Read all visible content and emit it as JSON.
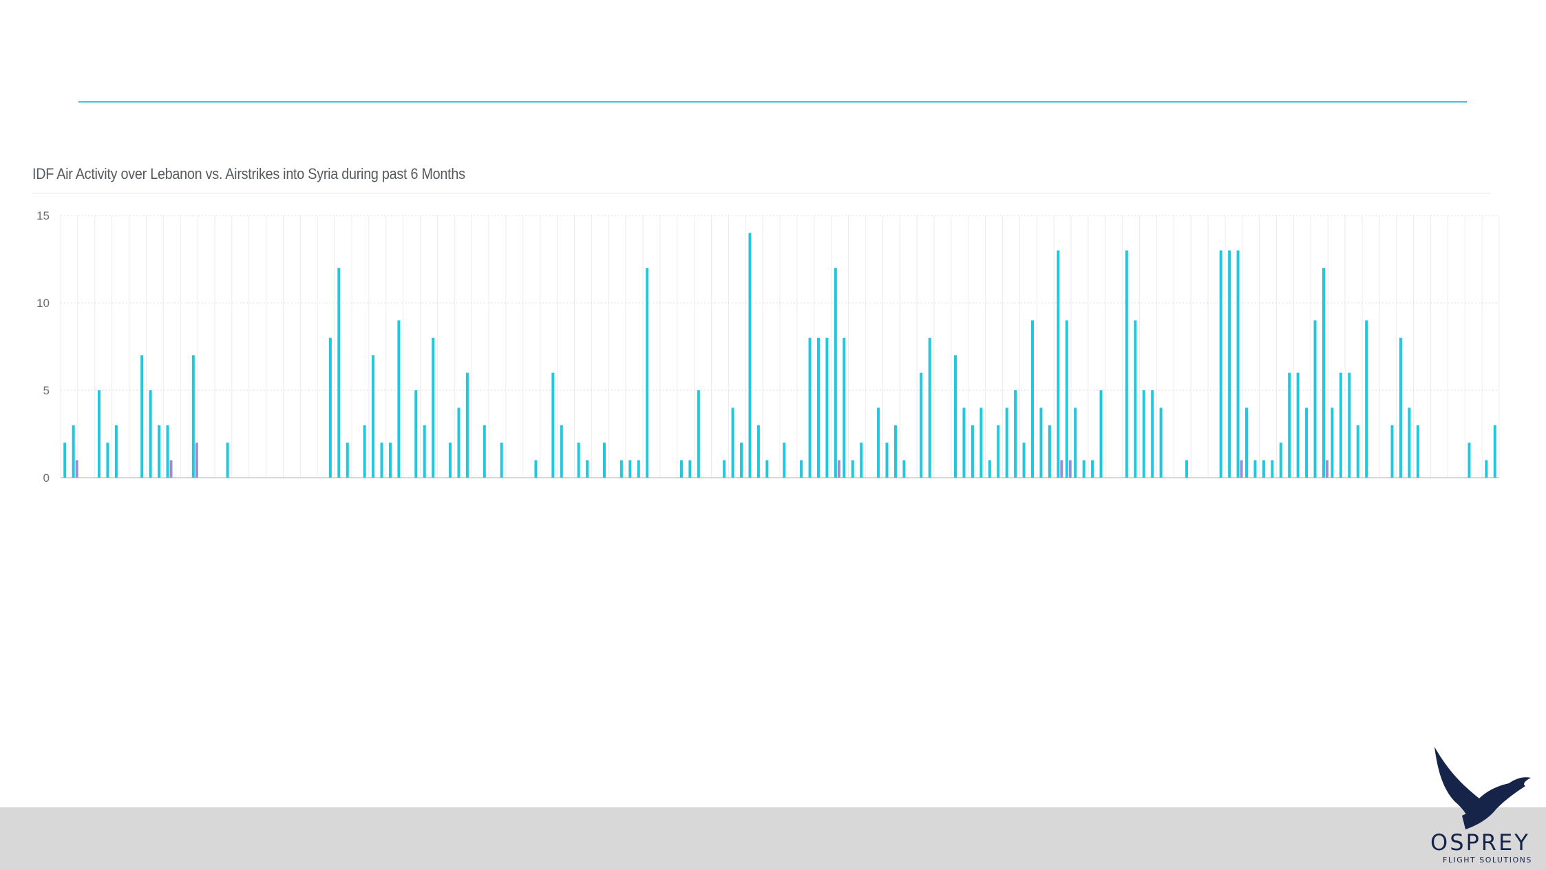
{
  "chart_data": {
    "type": "bar",
    "title": "IDF Air Activity over Lebanon vs. Airstrikes into Syria during past 6 Months",
    "xlabel": "",
    "ylabel": "",
    "ylim": [
      0,
      15
    ],
    "yticks": [
      0,
      5,
      10,
      15
    ],
    "grid": true,
    "series": [
      {
        "color": "#1ec8de",
        "values": [
          2,
          3,
          0,
          0,
          5,
          2,
          3,
          0,
          0,
          7,
          5,
          3,
          3,
          0,
          0,
          7,
          0,
          0,
          0,
          2,
          0,
          0,
          0,
          0,
          0,
          0,
          0,
          0,
          0,
          0,
          0,
          8,
          12,
          2,
          0,
          3,
          7,
          2,
          2,
          9,
          0,
          5,
          3,
          8,
          0,
          2,
          4,
          6,
          0,
          3,
          0,
          2,
          0,
          0,
          0,
          1,
          0,
          6,
          3,
          0,
          2,
          1,
          0,
          2,
          0,
          1,
          1,
          1,
          12,
          0,
          0,
          0,
          1,
          1,
          5,
          0,
          0,
          1,
          4,
          2,
          14,
          3,
          1,
          0,
          2,
          0,
          1,
          8,
          8,
          8,
          12,
          8,
          1,
          2,
          0,
          4,
          2,
          3,
          1,
          0,
          6,
          8,
          0,
          0,
          7,
          4,
          3,
          4,
          1,
          3,
          4,
          5,
          2,
          9,
          4,
          3,
          13,
          9,
          4,
          1,
          1,
          5,
          0,
          0,
          13,
          9,
          5,
          5,
          4,
          0,
          0,
          1,
          0,
          0,
          0,
          13,
          13,
          13,
          4,
          1,
          1,
          1,
          2,
          6,
          6,
          4,
          9,
          12,
          4,
          6,
          6,
          3,
          9,
          0,
          0,
          3,
          8,
          4,
          3,
          0,
          0,
          0,
          0,
          0,
          2,
          0,
          1,
          3
        ]
      },
      {
        "color": "#9a8fd6",
        "values": [
          0,
          1,
          0,
          0,
          0,
          0,
          0,
          0,
          0,
          0,
          0,
          0,
          1,
          0,
          0,
          1,
          0,
          0,
          0,
          0,
          0,
          0,
          0,
          0,
          0,
          0,
          0,
          0,
          0,
          0,
          0,
          0,
          0,
          0,
          0,
          0,
          0,
          0,
          0,
          0,
          0,
          0,
          0,
          0,
          0,
          0,
          0,
          0,
          0,
          0,
          0,
          0,
          0,
          0,
          0,
          0,
          0,
          0,
          0,
          0,
          0,
          0,
          0,
          0,
          0,
          0,
          0,
          0,
          0,
          0,
          0,
          0,
          0,
          0,
          0,
          0,
          0,
          0,
          0,
          0,
          0,
          0,
          0,
          0,
          0,
          0,
          0,
          0,
          0,
          0,
          1,
          0,
          0,
          0,
          0,
          0,
          0,
          0,
          0,
          0,
          0,
          0,
          0,
          0,
          0,
          0,
          0,
          0,
          0,
          0,
          0,
          0,
          0,
          0,
          0,
          0,
          1,
          1,
          0,
          0,
          0,
          0,
          0,
          0,
          0,
          0,
          0,
          0,
          0,
          0,
          0,
          0,
          0,
          0,
          0,
          0,
          0,
          1,
          0,
          0,
          0,
          0,
          0,
          0,
          0,
          0,
          0,
          1,
          0,
          0,
          0,
          0,
          0,
          0,
          0,
          0,
          0,
          0,
          0,
          0,
          0,
          0,
          0,
          0,
          0,
          0,
          0,
          0
        ]
      },
      {
        "color": "#9a8fd6",
        "values": [
          0,
          0,
          0,
          0,
          0,
          0,
          0,
          0,
          0,
          0,
          0,
          0,
          0,
          0,
          0,
          2,
          0,
          0,
          0,
          0,
          0,
          0,
          0,
          0,
          0,
          0,
          0,
          0,
          0,
          0,
          0,
          0,
          0,
          0,
          0,
          0,
          0,
          0,
          0,
          0,
          0,
          0,
          0,
          0,
          0,
          0,
          0,
          0,
          0,
          0,
          0,
          0,
          0,
          0,
          0,
          0,
          0,
          0,
          0,
          0,
          0,
          0,
          0,
          0,
          0,
          0,
          0,
          0,
          0,
          0,
          0,
          0,
          0,
          0,
          0,
          0,
          0,
          0,
          0,
          0,
          0,
          0,
          0,
          0,
          0,
          0,
          0,
          0,
          0,
          0,
          0,
          0,
          0,
          0,
          0,
          0,
          0,
          0,
          0,
          0,
          0,
          0,
          0,
          0,
          0,
          0,
          0,
          0,
          0,
          0,
          0,
          0,
          0,
          0,
          0,
          0,
          0,
          0,
          0,
          0,
          0,
          0,
          0,
          0,
          0,
          0,
          0,
          0,
          0,
          0,
          0,
          0,
          0,
          0,
          0,
          0,
          0,
          0,
          0,
          0,
          0,
          0,
          0,
          0,
          0,
          0,
          0,
          0,
          0,
          0,
          0,
          0,
          0,
          0,
          0,
          0,
          0,
          0,
          0,
          0,
          0,
          0,
          0,
          0,
          0,
          0,
          0,
          0
        ]
      }
    ]
  },
  "logo": {
    "wordmark": "OSPREY",
    "tagline": "FLIGHT SOLUTIONS",
    "icon": "osprey-bird-icon",
    "color": "#17244a"
  }
}
